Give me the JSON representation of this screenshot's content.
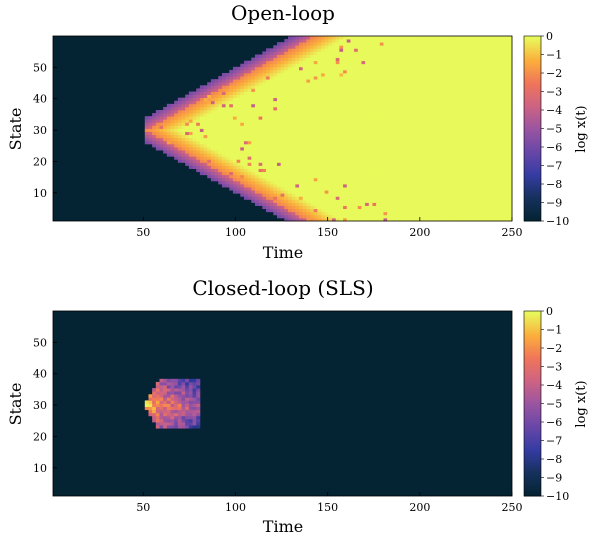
{
  "chart_data": [
    {
      "type": "heatmap",
      "title": "Open-loop",
      "xlabel": "Time",
      "ylabel": "State",
      "xlim": [
        1,
        250
      ],
      "ylim": [
        1,
        60
      ],
      "xticks": [
        50,
        100,
        150,
        200,
        250
      ],
      "yticks": [
        10,
        20,
        30,
        40,
        50
      ],
      "colorbar": {
        "label": "log x(t)",
        "range": [
          -10,
          0
        ],
        "ticks": [
          0,
          -1,
          -2,
          -3,
          -4,
          -5,
          -6,
          -7,
          -8,
          -9,
          -10
        ]
      },
      "field": {
        "description_source": "log10 of state magnitude; disturbance injected at state 30 at time 50",
        "origin_time": 50,
        "origin_state": 30,
        "cone_slope_states_per_step": 0.33,
        "background_value": -10,
        "saturated_value": 0
      }
    },
    {
      "type": "heatmap",
      "title": "Closed-loop (SLS)",
      "xlabel": "Time",
      "ylabel": "State",
      "xlim": [
        1,
        250
      ],
      "ylim": [
        1,
        60
      ],
      "xticks": [
        50,
        100,
        150,
        200,
        250
      ],
      "yticks": [
        10,
        20,
        30,
        40,
        50
      ],
      "colorbar": {
        "label": "log x(t)",
        "range": [
          -10,
          0
        ],
        "ticks": [
          0,
          -1,
          -2,
          -3,
          -4,
          -5,
          -6,
          -7,
          -8,
          -9,
          -10
        ]
      },
      "field": {
        "origin_time": 50,
        "origin_state": 30,
        "active_time_range": [
          50,
          80
        ],
        "active_state_range": [
          23,
          38
        ],
        "background_value": -10
      }
    }
  ],
  "colormap": {
    "name": "thermal",
    "stops": [
      [
        0.0,
        "#042333"
      ],
      [
        0.12,
        "#15305b"
      ],
      [
        0.25,
        "#353ca3"
      ],
      [
        0.38,
        "#6b47a8"
      ],
      [
        0.5,
        "#9a55a1"
      ],
      [
        0.62,
        "#cc6284"
      ],
      [
        0.75,
        "#f0755a"
      ],
      [
        0.87,
        "#fbad3c"
      ],
      [
        1.0,
        "#e8fa5b"
      ]
    ]
  }
}
